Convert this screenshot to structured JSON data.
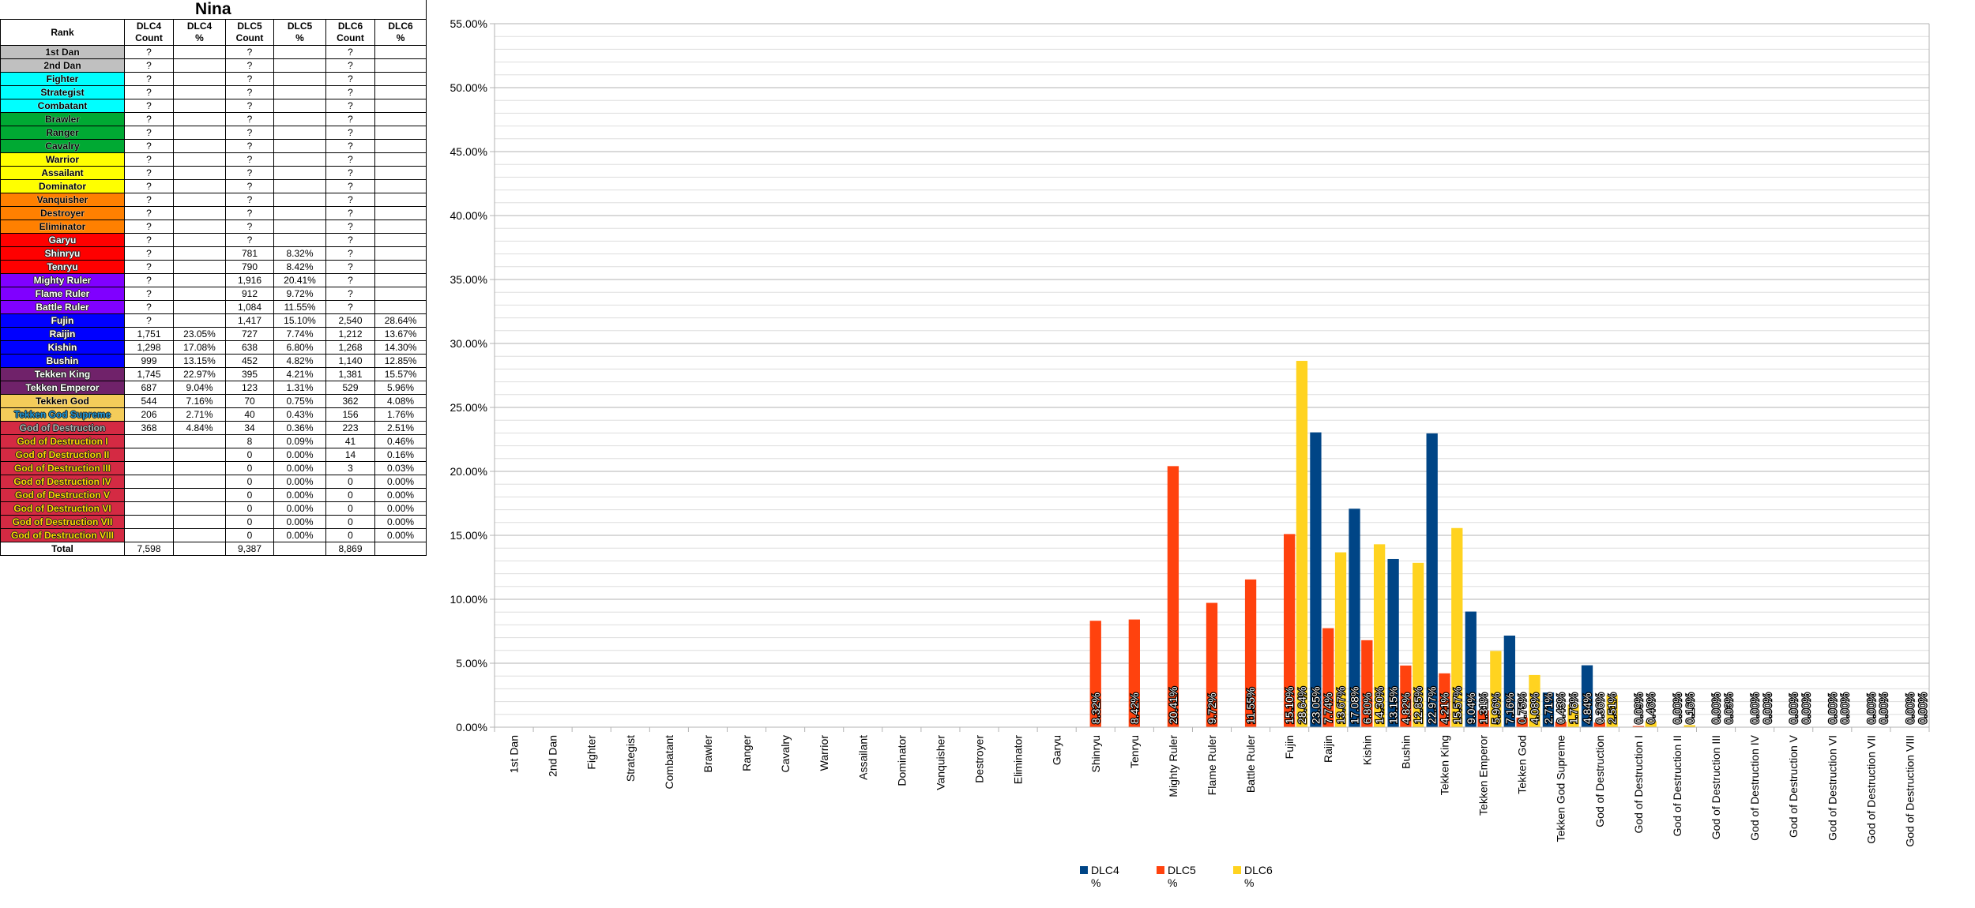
{
  "table": {
    "title": "Nina",
    "headers": [
      "Rank",
      "DLC4\nCount",
      "DLC4\n%",
      "DLC5\nCount",
      "DLC5\n%",
      "DLC6\nCount",
      "DLC6\n%"
    ],
    "rows": [
      {
        "rank": "1st Dan",
        "bg": "#c0c0c0",
        "fg": "#000000",
        "cells": [
          "?",
          "",
          "?",
          "",
          "?",
          ""
        ]
      },
      {
        "rank": "2nd Dan",
        "bg": "#c0c0c0",
        "fg": "#000000",
        "cells": [
          "?",
          "",
          "?",
          "",
          "?",
          ""
        ]
      },
      {
        "rank": "Fighter",
        "bg": "#00ffff",
        "fg": "#000000",
        "cells": [
          "?",
          "",
          "?",
          "",
          "?",
          ""
        ]
      },
      {
        "rank": "Strategist",
        "bg": "#00ffff",
        "fg": "#000000",
        "cells": [
          "?",
          "",
          "?",
          "",
          "?",
          ""
        ]
      },
      {
        "rank": "Combatant",
        "bg": "#00ffff",
        "fg": "#000000",
        "cells": [
          "?",
          "",
          "?",
          "",
          "?",
          ""
        ]
      },
      {
        "rank": "Brawler",
        "bg": "#00a933",
        "fg": "#000000",
        "cells": [
          "?",
          "",
          "?",
          "",
          "?",
          ""
        ]
      },
      {
        "rank": "Ranger",
        "bg": "#00a933",
        "fg": "#000000",
        "cells": [
          "?",
          "",
          "?",
          "",
          "?",
          ""
        ]
      },
      {
        "rank": "Cavalry",
        "bg": "#00a933",
        "fg": "#000000",
        "cells": [
          "?",
          "",
          "?",
          "",
          "?",
          ""
        ]
      },
      {
        "rank": "Warrior",
        "bg": "#ffff00",
        "fg": "#000000",
        "cells": [
          "?",
          "",
          "?",
          "",
          "?",
          ""
        ]
      },
      {
        "rank": "Assailant",
        "bg": "#ffff00",
        "fg": "#000000",
        "cells": [
          "?",
          "",
          "?",
          "",
          "?",
          ""
        ]
      },
      {
        "rank": "Dominator",
        "bg": "#ffff00",
        "fg": "#000000",
        "cells": [
          "?",
          "",
          "?",
          "",
          "?",
          ""
        ]
      },
      {
        "rank": "Vanquisher",
        "bg": "#ff8000",
        "fg": "#000000",
        "cells": [
          "?",
          "",
          "?",
          "",
          "?",
          ""
        ]
      },
      {
        "rank": "Destroyer",
        "bg": "#ff8000",
        "fg": "#000000",
        "cells": [
          "?",
          "",
          "?",
          "",
          "?",
          ""
        ]
      },
      {
        "rank": "Eliminator",
        "bg": "#ff8000",
        "fg": "#000000",
        "cells": [
          "?",
          "",
          "?",
          "",
          "?",
          ""
        ]
      },
      {
        "rank": "Garyu",
        "bg": "#ff0000",
        "fg": "#ffffff",
        "cells": [
          "?",
          "",
          "?",
          "",
          "?",
          ""
        ]
      },
      {
        "rank": "Shinryu",
        "bg": "#ff0000",
        "fg": "#ffffff",
        "cells": [
          "?",
          "",
          "781",
          "8.32%",
          "?",
          ""
        ]
      },
      {
        "rank": "Tenryu",
        "bg": "#ff0000",
        "fg": "#ffffff",
        "cells": [
          "?",
          "",
          "790",
          "8.42%",
          "?",
          ""
        ]
      },
      {
        "rank": "Mighty Ruler",
        "bg": "#8000ff",
        "fg": "#ffffff",
        "cells": [
          "?",
          "",
          "1,916",
          "20.41%",
          "?",
          ""
        ]
      },
      {
        "rank": "Flame Ruler",
        "bg": "#8000ff",
        "fg": "#ffffff",
        "cells": [
          "?",
          "",
          "912",
          "9.72%",
          "?",
          ""
        ]
      },
      {
        "rank": "Battle Ruler",
        "bg": "#8000ff",
        "fg": "#ffffff",
        "cells": [
          "?",
          "",
          "1,084",
          "11.55%",
          "?",
          ""
        ]
      },
      {
        "rank": "Fujin",
        "bg": "#0000ff",
        "fg": "#ffffff",
        "cells": [
          "?",
          "",
          "1,417",
          "15.10%",
          "2,540",
          "28.64%"
        ]
      },
      {
        "rank": "Raijin",
        "bg": "#0000ff",
        "fg": "#ffffff",
        "cells": [
          "1,751",
          "23.05%",
          "727",
          "7.74%",
          "1,212",
          "13.67%"
        ]
      },
      {
        "rank": "Kishin",
        "bg": "#0000ff",
        "fg": "#ffffff",
        "cells": [
          "1,298",
          "17.08%",
          "638",
          "6.80%",
          "1,268",
          "14.30%"
        ]
      },
      {
        "rank": "Bushin",
        "bg": "#0000ff",
        "fg": "#ffffff",
        "cells": [
          "999",
          "13.15%",
          "452",
          "4.82%",
          "1,140",
          "12.85%"
        ]
      },
      {
        "rank": "Tekken King",
        "bg": "#70226a",
        "fg": "#ffffff",
        "cells": [
          "1,745",
          "22.97%",
          "395",
          "4.21%",
          "1,381",
          "15.57%"
        ]
      },
      {
        "rank": "Tekken Emperor",
        "bg": "#70226a",
        "fg": "#ffffff",
        "cells": [
          "687",
          "9.04%",
          "123",
          "1.31%",
          "529",
          "5.96%"
        ]
      },
      {
        "rank": "Tekken God",
        "bg": "#f4cc5a",
        "fg": "#000000",
        "cells": [
          "544",
          "7.16%",
          "70",
          "0.75%",
          "362",
          "4.08%"
        ]
      },
      {
        "rank": "Tekken God Supreme",
        "bg": "#f4cc5a",
        "fg": "#1e9bd7",
        "cells": [
          "206",
          "2.71%",
          "40",
          "0.43%",
          "156",
          "1.76%"
        ]
      },
      {
        "rank": "God of Destruction",
        "bg": "#d42a43",
        "fg": "#b0b0b0",
        "cells": [
          "368",
          "4.84%",
          "34",
          "0.36%",
          "223",
          "2.51%"
        ]
      },
      {
        "rank": "God of Destruction I",
        "bg": "#d42a43",
        "fg": "#ffd700",
        "cells": [
          "",
          "",
          "8",
          "0.09%",
          "41",
          "0.46%"
        ]
      },
      {
        "rank": "God of Destruction II",
        "bg": "#d42a43",
        "fg": "#ffd700",
        "cells": [
          "",
          "",
          "0",
          "0.00%",
          "14",
          "0.16%"
        ]
      },
      {
        "rank": "God of Destruction III",
        "bg": "#d42a43",
        "fg": "#ffd700",
        "cells": [
          "",
          "",
          "0",
          "0.00%",
          "3",
          "0.03%"
        ]
      },
      {
        "rank": "God of Destruction IV",
        "bg": "#d42a43",
        "fg": "#ffd700",
        "cells": [
          "",
          "",
          "0",
          "0.00%",
          "0",
          "0.00%"
        ]
      },
      {
        "rank": "God of Destruction V",
        "bg": "#d42a43",
        "fg": "#ffd700",
        "cells": [
          "",
          "",
          "0",
          "0.00%",
          "0",
          "0.00%"
        ]
      },
      {
        "rank": "God of Destruction VI",
        "bg": "#d42a43",
        "fg": "#ffd700",
        "cells": [
          "",
          "",
          "0",
          "0.00%",
          "0",
          "0.00%"
        ]
      },
      {
        "rank": "God of Destruction VII",
        "bg": "#d42a43",
        "fg": "#ffd700",
        "cells": [
          "",
          "",
          "0",
          "0.00%",
          "0",
          "0.00%"
        ]
      },
      {
        "rank": "God of Destruction VIII",
        "bg": "#d42a43",
        "fg": "#ffd700",
        "cells": [
          "",
          "",
          "0",
          "0.00%",
          "0",
          "0.00%"
        ]
      }
    ],
    "total": {
      "label": "Total",
      "cells": [
        "7,598",
        "",
        "9,387",
        "",
        "8,869",
        ""
      ]
    }
  },
  "chart_data": {
    "type": "bar",
    "categories": [
      "1st Dan",
      "2nd Dan",
      "Fighter",
      "Strategist",
      "Combatant",
      "Brawler",
      "Ranger",
      "Cavalry",
      "Warrior",
      "Assailant",
      "Dominator",
      "Vanquisher",
      "Destroyer",
      "Eliminator",
      "Garyu",
      "Shinryu",
      "Tenryu",
      "Mighty Ruler",
      "Flame Ruler",
      "Battle Ruler",
      "Fujin",
      "Raijin",
      "Kishin",
      "Bushin",
      "Tekken King",
      "Tekken Emperor",
      "Tekken God",
      "Tekken God Supreme",
      "God of Destruction",
      "God of Destruction I",
      "God of Destruction II",
      "God of Destruction III",
      "God of Destruction IV",
      "God of Destruction V",
      "God of Destruction VI",
      "God of Destruction VII",
      "God of Destruction VIII"
    ],
    "series": [
      {
        "name": "DLC4\n%",
        "color": "#004586",
        "values": [
          null,
          null,
          null,
          null,
          null,
          null,
          null,
          null,
          null,
          null,
          null,
          null,
          null,
          null,
          null,
          null,
          null,
          null,
          null,
          null,
          null,
          23.05,
          17.08,
          13.15,
          22.97,
          9.04,
          7.16,
          2.71,
          4.84,
          null,
          null,
          null,
          null,
          null,
          null,
          null,
          null
        ]
      },
      {
        "name": "DLC5\n%",
        "color": "#ff420e",
        "values": [
          null,
          null,
          null,
          null,
          null,
          null,
          null,
          null,
          null,
          null,
          null,
          null,
          null,
          null,
          null,
          8.32,
          8.42,
          20.41,
          9.72,
          11.55,
          15.1,
          7.74,
          6.8,
          4.82,
          4.21,
          1.31,
          0.75,
          0.43,
          0.36,
          0.09,
          0,
          0,
          0,
          0,
          0,
          0,
          0
        ]
      },
      {
        "name": "DLC6\n%",
        "color": "#ffd320",
        "values": [
          null,
          null,
          null,
          null,
          null,
          null,
          null,
          null,
          null,
          null,
          null,
          null,
          null,
          null,
          null,
          null,
          null,
          null,
          null,
          null,
          28.64,
          13.67,
          14.3,
          12.85,
          15.57,
          5.96,
          4.08,
          1.76,
          2.51,
          0.46,
          0.16,
          0.03,
          0,
          0,
          0,
          0,
          0
        ]
      }
    ],
    "ylim": [
      0,
      55
    ],
    "y_major_step": 5,
    "y_minor_step": 1,
    "y_tick_format": "percent, 2 decimals",
    "grid": true,
    "data_labels": true,
    "legend": "bottom"
  }
}
